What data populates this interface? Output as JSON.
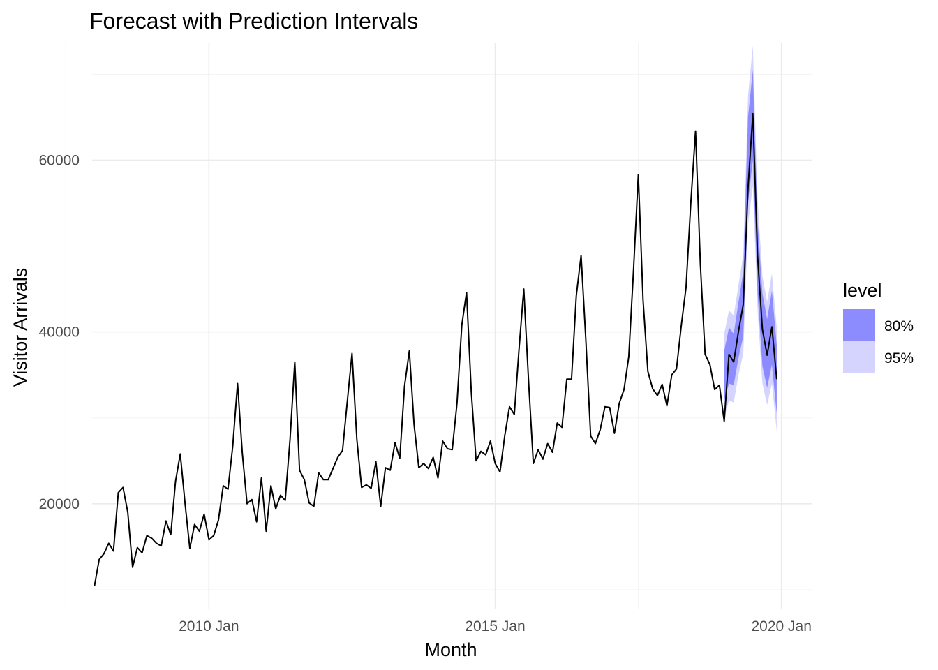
{
  "chart_data": {
    "type": "line",
    "title": "Forecast with Prediction Intervals",
    "xlabel": "Month",
    "ylabel": "Visitor Arrivals",
    "x_ticks": [
      {
        "label": "2010 Jan",
        "value": 2010.0
      },
      {
        "label": "2015 Jan",
        "value": 2015.0
      },
      {
        "label": "2020 Jan",
        "value": 2020.0
      }
    ],
    "y_ticks": [
      20000,
      40000,
      60000
    ],
    "xlim": [
      2007.96,
      2020.54
    ],
    "ylim": [
      7800,
      73600
    ],
    "grid": true,
    "legend": {
      "title": "level",
      "position": "right",
      "entries": [
        {
          "label": "80%",
          "color": "#8c8cff"
        },
        {
          "label": "95%",
          "color": "#d4d4ff"
        }
      ]
    },
    "series": [
      {
        "start": "2008-01",
        "frequency": "monthly",
        "color": "#000000",
        "values": [
          10400,
          13500,
          14200,
          15400,
          14500,
          21300,
          21900,
          19000,
          12600,
          14900,
          14300,
          16300,
          16000,
          15400,
          15100,
          18000,
          16400,
          22600,
          25800,
          20000,
          14800,
          17600,
          16800,
          18800,
          15800,
          16300,
          18100,
          22100,
          21700,
          26700,
          34000,
          25900,
          20000,
          20500,
          17900,
          23000,
          16800,
          22100,
          19400,
          21000,
          20400,
          27500,
          36500,
          23900,
          22800,
          20100,
          19700,
          23600,
          22800,
          22800,
          24100,
          25400,
          26200,
          31900,
          37500,
          27500,
          21900,
          22200,
          21800,
          24900,
          19700,
          24200,
          23900,
          27100,
          25300,
          33700,
          37800,
          29200,
          24200,
          24700,
          24100,
          25400,
          23000,
          27300,
          26400,
          26300,
          31700,
          40800,
          44600,
          33000,
          25000,
          26100,
          25700,
          27300,
          24700,
          23700,
          27900,
          31300,
          30400,
          38000,
          45000,
          34200,
          24700,
          26300,
          25200,
          27000,
          26000,
          29400,
          28900,
          34500,
          34500,
          44200,
          48900,
          39100,
          27900,
          27000,
          28600,
          31300,
          31200,
          28200,
          31700,
          33300,
          37100,
          47300,
          58300,
          43700,
          35400,
          33400,
          32600,
          33900,
          31400,
          35000,
          35700,
          40700,
          45200,
          55000,
          63400,
          47900,
          37400,
          36200,
          33300,
          33800,
          29600,
          37400,
          36500,
          40100,
          43200,
          56700,
          65400,
          48800,
          40300,
          37300,
          40600,
          34500
        ]
      }
    ],
    "forecast": {
      "start": "2019-01",
      "months": 12,
      "point": [
        34500,
        37400,
        36500,
        40100,
        43200,
        60000,
        65400,
        48800,
        40300,
        37300,
        40600,
        34500
      ],
      "pi80": [
        [
          32000,
          37800
        ],
        [
          34000,
          40500
        ],
        [
          33800,
          39800
        ],
        [
          37000,
          43500
        ],
        [
          39500,
          47000
        ],
        [
          55000,
          65000
        ],
        [
          60000,
          70500
        ],
        [
          44500,
          53000
        ],
        [
          36000,
          44500
        ],
        [
          33500,
          41500
        ],
        [
          36200,
          44800
        ],
        [
          30500,
          38500
        ]
      ],
      "pi95": [
        [
          30000,
          39800
        ],
        [
          32000,
          42500
        ],
        [
          31800,
          41900
        ],
        [
          35000,
          45500
        ],
        [
          37500,
          49000
        ],
        [
          52500,
          67500
        ],
        [
          57000,
          73300
        ],
        [
          42500,
          55500
        ],
        [
          34000,
          46500
        ],
        [
          31500,
          43500
        ],
        [
          34000,
          46800
        ],
        [
          28500,
          40500
        ]
      ]
    }
  }
}
